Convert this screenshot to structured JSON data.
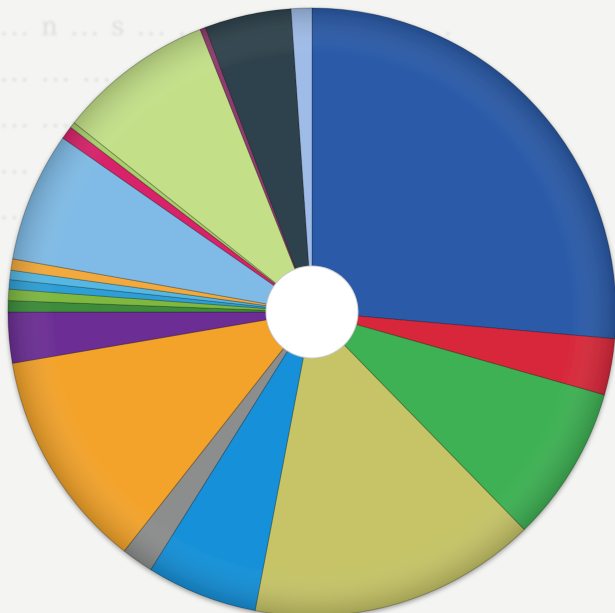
{
  "page": {
    "background_text_lines": [
      "... n ... s ...  ... pre ... ... ... ... .",
      "... ... ... ...  ... ... ... ... ... ...",
      "... ... ... ... ... ... ... ... ...",
      "... ... ... ... ... ... ...",
      "... ... ... ... ..."
    ]
  },
  "chart_data": {
    "type": "pie",
    "style": "donut",
    "start_angle_deg": 0,
    "direction": "clockwise",
    "legend": "none",
    "slices": [
      {
        "label": "",
        "value": 26.4,
        "color": "#2a5aa8"
      },
      {
        "label": "",
        "value": 3.0,
        "color": "#d8283a"
      },
      {
        "label": "",
        "value": 8.3,
        "color": "#3db153"
      },
      {
        "label": "",
        "value": 15.3,
        "color": "#c6c466"
      },
      {
        "label": "",
        "value": 5.9,
        "color": "#1590d8"
      },
      {
        "label": "",
        "value": 1.7,
        "color": "#8c8e8e"
      },
      {
        "label": "",
        "value": 11.7,
        "color": "#f3a32a"
      },
      {
        "label": "",
        "value": 2.7,
        "color": "#6c2f95"
      },
      {
        "label": "",
        "value": 0.6,
        "color": "#3c8c3a"
      },
      {
        "label": "",
        "value": 0.6,
        "color": "#7eb840"
      },
      {
        "label": "",
        "value": 0.5,
        "color": "#2e9fd6"
      },
      {
        "label": "",
        "value": 0.5,
        "color": "#54b7e2"
      },
      {
        "label": "",
        "value": 0.6,
        "color": "#f2a93c"
      },
      {
        "label": "",
        "value": 6.9,
        "color": "#7fbbe6"
      },
      {
        "label": "",
        "value": 0.7,
        "color": "#d8236a"
      },
      {
        "label": "",
        "value": 0.3,
        "color": "#a9cf6c"
      },
      {
        "label": "",
        "value": 8.3,
        "color": "#c3e088"
      },
      {
        "label": "",
        "value": 0.3,
        "color": "#8f3c6e"
      },
      {
        "label": "",
        "value": 4.6,
        "color": "#2f434d"
      },
      {
        "label": "",
        "value": 1.1,
        "color": "#9fbce8"
      }
    ]
  }
}
